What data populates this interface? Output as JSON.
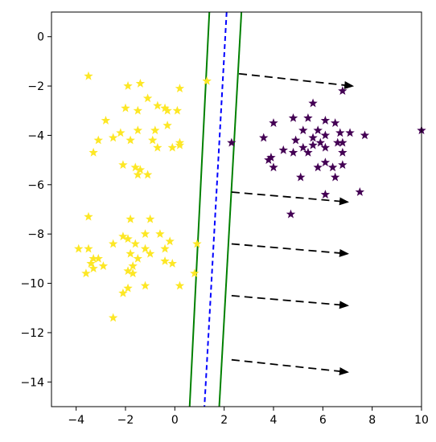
{
  "chart_data": {
    "type": "scatter",
    "title": "",
    "xlabel": "",
    "ylabel": "",
    "xlim": [
      -5,
      10
    ],
    "ylim": [
      -15,
      1
    ],
    "grid": false,
    "x_ticks": [
      -4,
      -2,
      0,
      2,
      4,
      6,
      8,
      10
    ],
    "y_ticks": [
      0,
      -2,
      -4,
      -6,
      -8,
      -10,
      -12,
      -14
    ],
    "x_tick_labels": [
      "−4",
      "−2",
      "0",
      "2",
      "4",
      "6",
      "8",
      "10"
    ],
    "y_tick_labels": [
      "0",
      "−2",
      "−4",
      "−6",
      "−8",
      "−10",
      "−12",
      "−14"
    ],
    "colors": {
      "class_a": "#fde725",
      "class_b": "#440154",
      "margin_lines": "#008000",
      "decision_line": "#0000ff",
      "arrows": "#000000"
    },
    "series": [
      {
        "marker": "star",
        "color": "#fde725",
        "points": [
          [
            -3.5,
            -1.6
          ],
          [
            -1.9,
            -2.0
          ],
          [
            -1.4,
            -1.9
          ],
          [
            0.2,
            -2.1
          ],
          [
            1.3,
            -1.8
          ],
          [
            -2.0,
            -2.9
          ],
          [
            -1.5,
            -3.0
          ],
          [
            -1.1,
            -2.5
          ],
          [
            -0.4,
            -2.9
          ],
          [
            -0.3,
            -3.0
          ],
          [
            0.1,
            -3.0
          ],
          [
            -0.7,
            -2.8
          ],
          [
            -2.8,
            -3.4
          ],
          [
            -3.1,
            -4.2
          ],
          [
            -3.3,
            -4.7
          ],
          [
            -2.5,
            -4.1
          ],
          [
            -2.2,
            -3.9
          ],
          [
            -1.8,
            -4.2
          ],
          [
            -1.5,
            -3.8
          ],
          [
            -0.8,
            -3.8
          ],
          [
            -0.3,
            -3.6
          ],
          [
            -0.9,
            -4.2
          ],
          [
            -0.7,
            -4.5
          ],
          [
            -0.1,
            -4.5
          ],
          [
            0.2,
            -4.4
          ],
          [
            -2.1,
            -5.2
          ],
          [
            -1.6,
            -5.3
          ],
          [
            -1.4,
            -5.4
          ],
          [
            -1.5,
            -5.6
          ],
          [
            -1.1,
            -5.6
          ],
          [
            0.2,
            -4.3
          ],
          [
            -3.5,
            -7.3
          ],
          [
            -1.8,
            -7.4
          ],
          [
            -3.9,
            -8.6
          ],
          [
            -3.5,
            -8.6
          ],
          [
            -3.3,
            -9.0
          ],
          [
            -3.1,
            -9.0
          ],
          [
            -3.4,
            -9.2
          ],
          [
            -3.6,
            -9.6
          ],
          [
            -3.3,
            -9.4
          ],
          [
            -2.9,
            -9.3
          ],
          [
            -2.5,
            -8.4
          ],
          [
            -2.1,
            -8.1
          ],
          [
            -1.9,
            -8.2
          ],
          [
            -1.6,
            -8.4
          ],
          [
            -1.8,
            -8.8
          ],
          [
            -1.5,
            -9.0
          ],
          [
            -1.7,
            -9.3
          ],
          [
            -1.7,
            -9.6
          ],
          [
            -1.2,
            -8.6
          ],
          [
            -1.0,
            -8.8
          ],
          [
            -1.2,
            -8.0
          ],
          [
            -0.6,
            -8.0
          ],
          [
            -0.4,
            -8.6
          ],
          [
            -0.2,
            -8.3
          ],
          [
            -0.4,
            -9.1
          ],
          [
            -0.1,
            -9.2
          ],
          [
            0.2,
            -10.1
          ],
          [
            -1.2,
            -10.1
          ],
          [
            -1.9,
            -10.2
          ],
          [
            -2.1,
            -10.4
          ],
          [
            -2.5,
            -11.4
          ],
          [
            0.8,
            -9.6
          ],
          [
            0.9,
            -8.4
          ],
          [
            -1.9,
            -9.5
          ],
          [
            -1.0,
            -7.4
          ]
        ]
      },
      {
        "marker": "star",
        "color": "#440154",
        "points": [
          [
            6.8,
            -2.2
          ],
          [
            5.6,
            -2.7
          ],
          [
            4.8,
            -3.3
          ],
          [
            5.4,
            -3.3
          ],
          [
            6.1,
            -3.4
          ],
          [
            6.5,
            -3.5
          ],
          [
            4.0,
            -3.5
          ],
          [
            5.2,
            -3.8
          ],
          [
            5.8,
            -3.8
          ],
          [
            7.1,
            -3.9
          ],
          [
            6.7,
            -3.9
          ],
          [
            6.1,
            -4.0
          ],
          [
            5.6,
            -4.1
          ],
          [
            4.9,
            -4.2
          ],
          [
            3.6,
            -4.1
          ],
          [
            6.6,
            -4.3
          ],
          [
            5.9,
            -4.3
          ],
          [
            5.6,
            -4.4
          ],
          [
            5.2,
            -4.5
          ],
          [
            6.1,
            -4.5
          ],
          [
            4.8,
            -4.7
          ],
          [
            5.4,
            -4.7
          ],
          [
            6.8,
            -4.3
          ],
          [
            7.7,
            -4.0
          ],
          [
            6.8,
            -4.7
          ],
          [
            4.4,
            -4.6
          ],
          [
            3.9,
            -4.9
          ],
          [
            3.8,
            -5.0
          ],
          [
            4.0,
            -5.3
          ],
          [
            6.1,
            -5.1
          ],
          [
            6.4,
            -5.3
          ],
          [
            6.8,
            -5.2
          ],
          [
            5.8,
            -5.3
          ],
          [
            5.1,
            -5.7
          ],
          [
            6.5,
            -5.7
          ],
          [
            7.5,
            -6.3
          ],
          [
            6.1,
            -6.4
          ],
          [
            4.7,
            -7.2
          ],
          [
            10.0,
            -3.8
          ],
          [
            2.3,
            -4.3
          ]
        ]
      }
    ],
    "lines": [
      {
        "kind": "margin",
        "style": "solid",
        "color": "#008000",
        "from": [
          1.4,
          1.0
        ],
        "to": [
          0.6,
          -15.0
        ]
      },
      {
        "kind": "decision",
        "style": "dashed",
        "color": "#0000ff",
        "from": [
          2.1,
          1.0
        ],
        "to": [
          1.2,
          -15.0
        ]
      },
      {
        "kind": "margin",
        "style": "solid",
        "color": "#008000",
        "from": [
          2.7,
          1.0
        ],
        "to": [
          1.8,
          -15.0
        ]
      }
    ],
    "arrows": [
      {
        "from": [
          2.6,
          -1.5
        ],
        "to": [
          7.2,
          -2.0
        ]
      },
      {
        "from": [
          2.3,
          -6.3
        ],
        "to": [
          7.0,
          -6.7
        ]
      },
      {
        "from": [
          2.3,
          -8.4
        ],
        "to": [
          7.0,
          -8.8
        ]
      },
      {
        "from": [
          2.3,
          -10.5
        ],
        "to": [
          7.0,
          -10.9
        ]
      },
      {
        "from": [
          2.3,
          -13.1
        ],
        "to": [
          7.0,
          -13.6
        ]
      }
    ]
  }
}
